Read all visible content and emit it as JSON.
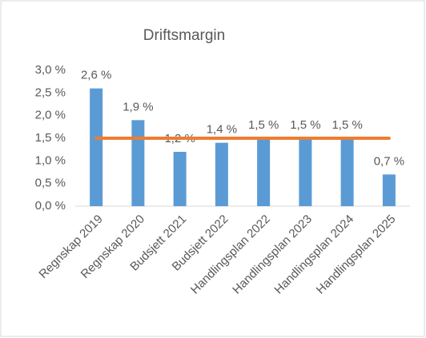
{
  "chart_data": {
    "type": "bar",
    "title": "Driftsmargin",
    "categories": [
      "Regnskap 2019",
      "Regnskap 2020",
      "Budsjett 2021",
      "Budsjett 2022",
      "Handlingsplan 2022",
      "Handlingsplan 2023",
      "Handlingsplan 2024",
      "Handlingsplan 2025"
    ],
    "series": [
      {
        "type": "bar",
        "color": "#5b9bd5",
        "values": [
          2.6,
          1.9,
          1.2,
          1.4,
          1.5,
          1.5,
          1.5,
          0.7
        ],
        "value_labels": [
          "2,6 %",
          "1,9 %",
          "1,2 %",
          "1,4 %",
          "1,5 %",
          "1,5 %",
          "1,5 %",
          "0,7 %"
        ]
      },
      {
        "type": "line",
        "color": "#ed7d31",
        "values": [
          1.5,
          1.5,
          1.5,
          1.5,
          1.5,
          1.5,
          1.5,
          1.5
        ]
      }
    ],
    "ylim": [
      0,
      3
    ],
    "yticks": [
      {
        "value": 0,
        "label": "0,0 %"
      },
      {
        "value": 0.5,
        "label": "0,5 %"
      },
      {
        "value": 1,
        "label": "1,0 %"
      },
      {
        "value": 1.5,
        "label": "1,5 %"
      },
      {
        "value": 2,
        "label": "2,0 %"
      },
      {
        "value": 2.5,
        "label": "2,5 %"
      },
      {
        "value": 3,
        "label": "3,0 %"
      }
    ],
    "grid": false
  }
}
